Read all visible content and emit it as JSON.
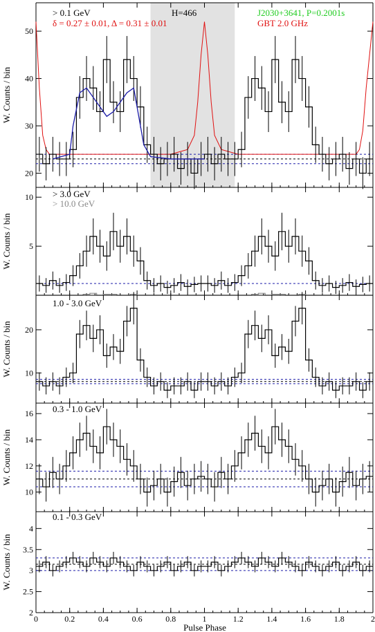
{
  "figure": {
    "xlabel": "Pulse Phase",
    "xticks": [
      "0",
      "0.2",
      "0.4",
      "0.6",
      "0.8",
      "1",
      "1.2",
      "1.4",
      "1.6",
      "1.8",
      "2"
    ],
    "xrange": [
      0,
      2
    ]
  },
  "chart_data": [
    {
      "type": "line",
      "band": "> 0.1 GeV",
      "ylabel": "W. Counts / bin",
      "ylim": [
        17,
        56
      ],
      "yticks": [
        20,
        30,
        40,
        50
      ],
      "annotations": {
        "energy": "> 0.1 GeV",
        "fit": "δ = 0.27 ± 0.01, Δ = 0.31 ± 0.01",
        "htest": "H=466",
        "pulsar": "J2030+3641, P=0.2001s",
        "radio": "GBT 2.0 GHz"
      },
      "shaded_phase": [
        0.68,
        1.18
      ],
      "background_levels": [
        22,
        23,
        24
      ],
      "bins": 50,
      "x": [
        0.02,
        0.06,
        0.1,
        0.14,
        0.18,
        0.22,
        0.26,
        0.3,
        0.34,
        0.38,
        0.42,
        0.46,
        0.5,
        0.54,
        0.58,
        0.62,
        0.66,
        0.7,
        0.74,
        0.78,
        0.82,
        0.86,
        0.9,
        0.94,
        0.98
      ],
      "series": [
        {
          "values": [
            24,
            22,
            24,
            23,
            23,
            25,
            36,
            40,
            38,
            33,
            44,
            35,
            33,
            44,
            40,
            34,
            26,
            24,
            22,
            23,
            24,
            21,
            23,
            20,
            23
          ]
        }
      ],
      "fit_curve": {
        "x": [
          0.1,
          0.2,
          0.22,
          0.26,
          0.3,
          0.34,
          0.38,
          0.42,
          0.46,
          0.5,
          0.54,
          0.58,
          0.6,
          0.64,
          0.68,
          0.8,
          1.0
        ],
        "y": [
          23,
          24,
          30,
          37,
          38,
          36,
          34,
          32,
          33,
          35,
          37,
          38,
          34,
          26,
          23.5,
          23,
          23
        ]
      },
      "radio_profile": {
        "phase": [
          0,
          0.02,
          0.04,
          0.06,
          0.08,
          0.12,
          0.2,
          0.4,
          0.8,
          0.9,
          0.94,
          0.96,
          0.98,
          1.0,
          1.02,
          1.04,
          1.06,
          1.1,
          1.2,
          1.6,
          1.9,
          1.92,
          1.94,
          1.96,
          1.98,
          2.0
        ],
        "level": [
          52,
          38,
          28,
          25,
          24,
          24,
          24,
          24,
          24,
          25,
          28,
          35,
          45,
          52,
          45,
          35,
          28,
          25,
          24,
          24,
          24,
          25,
          29,
          38,
          45,
          52
        ]
      }
    },
    {
      "type": "line",
      "band": "> 3.0 GeV",
      "band2": "> 10.0 GeV",
      "ylabel": "W. Counts / bin",
      "ylim": [
        0,
        11
      ],
      "yticks": [
        5,
        10
      ],
      "background_levels": [
        1.2
      ],
      "x": [
        0.02,
        0.06,
        0.1,
        0.14,
        0.18,
        0.22,
        0.26,
        0.3,
        0.34,
        0.38,
        0.42,
        0.46,
        0.5,
        0.54,
        0.58,
        0.62,
        0.66,
        0.7,
        0.74,
        0.78,
        0.82,
        0.86,
        0.9,
        0.94,
        0.98
      ],
      "series": [
        {
          "name": "> 3.0 GeV",
          "values": [
            1.2,
            1.0,
            1.5,
            1.0,
            1.3,
            2.0,
            3.0,
            4.5,
            6.0,
            5.0,
            4.0,
            6.5,
            5.0,
            6.0,
            4.5,
            3.5,
            1.5,
            1.0,
            1.2,
            0.8,
            1.0,
            1.3,
            0.9,
            1.1,
            1.2
          ]
        },
        {
          "name": "> 10.0 GeV",
          "values": [
            0.0,
            0.0,
            0.0,
            0.0,
            0.0,
            0.0,
            0.0,
            0.1,
            0.2,
            0.0,
            0.1,
            0.1,
            0.0,
            0.0,
            0.1,
            0.0,
            0.0,
            0.0,
            0.0,
            0.0,
            0.0,
            0.0,
            0.0,
            0.0,
            0.0
          ]
        }
      ]
    },
    {
      "type": "line",
      "band": "1.0 - 3.0 GeV",
      "ylabel": "W. Counts / bin",
      "ylim": [
        3,
        28
      ],
      "yticks": [
        10,
        20
      ],
      "background_levels": [
        7.5,
        8,
        8.5
      ],
      "x": [
        0.02,
        0.06,
        0.1,
        0.14,
        0.18,
        0.22,
        0.26,
        0.3,
        0.34,
        0.38,
        0.42,
        0.46,
        0.5,
        0.54,
        0.58,
        0.62,
        0.66,
        0.7,
        0.74,
        0.78,
        0.82,
        0.86,
        0.9,
        0.94,
        0.98
      ],
      "series": [
        {
          "values": [
            8,
            7,
            8,
            7,
            9,
            10,
            19,
            21,
            18,
            20,
            14,
            16,
            15,
            22,
            25,
            13,
            9,
            7,
            8,
            6,
            7,
            7,
            8,
            6,
            8
          ]
        }
      ]
    },
    {
      "type": "line",
      "band": "0.3 - 1.0 GeV",
      "ylabel": "W. Counts / bin",
      "ylim": [
        8.5,
        16.8
      ],
      "yticks": [
        10,
        12,
        14,
        16
      ],
      "background_levels": [
        10.4,
        11,
        11.6
      ],
      "x": [
        0.02,
        0.06,
        0.1,
        0.14,
        0.18,
        0.22,
        0.26,
        0.3,
        0.34,
        0.38,
        0.42,
        0.46,
        0.5,
        0.54,
        0.58,
        0.62,
        0.66,
        0.7,
        0.74,
        0.78,
        0.82,
        0.86,
        0.9,
        0.94,
        0.98
      ],
      "series": [
        {
          "values": [
            11,
            10.4,
            11.5,
            11,
            12,
            13,
            14,
            14.5,
            13.5,
            13,
            15,
            14,
            13.5,
            12.5,
            12,
            11,
            10,
            10.5,
            11,
            10,
            10.8,
            11.5,
            10.5,
            11,
            11.2
          ]
        }
      ]
    },
    {
      "type": "line",
      "band": "0.1 - 0.3 GeV",
      "ylabel": "W. Counts / bin",
      "ylim": [
        2,
        4.4
      ],
      "yticks": [
        2,
        2.5,
        3,
        3.5,
        4
      ],
      "background_levels": [
        3.0,
        3.15,
        3.3
      ],
      "x": [
        0.02,
        0.06,
        0.1,
        0.14,
        0.18,
        0.22,
        0.26,
        0.3,
        0.34,
        0.38,
        0.42,
        0.46,
        0.5,
        0.54,
        0.58,
        0.62,
        0.66,
        0.7,
        0.74,
        0.78,
        0.82,
        0.86,
        0.9,
        0.94,
        0.98
      ],
      "series": [
        {
          "values": [
            3.1,
            3.2,
            3.0,
            3.1,
            3.2,
            3.3,
            3.2,
            3.1,
            3.3,
            3.2,
            3.1,
            3.3,
            3.2,
            3.1,
            3.0,
            3.2,
            3.1,
            3.0,
            3.1,
            3.2,
            3.0,
            3.1,
            3.2,
            3.0,
            3.1
          ]
        }
      ]
    }
  ],
  "colors": {
    "data": "#000000",
    "fit": "#1a1aa8",
    "radio": "#e01010",
    "pulsar_label": "#22cc22",
    "fit_label": "#e01010",
    "high_energy": "#888888",
    "background": "#1a1aa8",
    "shade": "#e2e2e2"
  }
}
